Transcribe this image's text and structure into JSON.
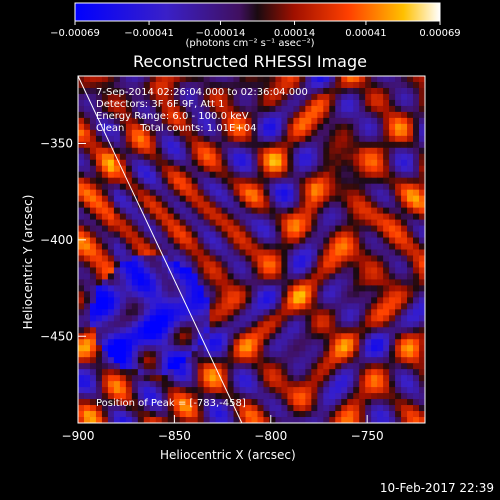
{
  "app": {
    "title": "Reconstructed RHESSI Image",
    "footer_timestamp": "10-Feb-2017 22:39",
    "colorbar_units": "(photons cm⁻² s⁻¹ asec⁻²)"
  },
  "info": {
    "time_range": "7-Sep-2014 02:26:04.000 to 02:36:04.000",
    "detectors": "Detectors: 3F 6F 9F, Att 1",
    "energy_range": "Energy Range: 6.0 - 100.0 keV",
    "clean": "Clean     Total counts: 1.01E+04",
    "peak": "Position of Peak = [-783,-458]"
  },
  "chart_data": {
    "type": "heatmap",
    "title": "Reconstructed RHESSI Image",
    "xlabel": "Heliocentric X (arcsec)",
    "ylabel": "Heliocentric Y (arcsec)",
    "xlim": [
      -900,
      -720
    ],
    "ylim": [
      -495,
      -315
    ],
    "x_ticks": [
      -900,
      -850,
      -800,
      -750
    ],
    "y_ticks": [
      -350,
      -400,
      -450
    ],
    "x_tick_labels": [
      "−900",
      "−850",
      "−800",
      "−750"
    ],
    "y_tick_labels": [
      "−350",
      "−400",
      "−450"
    ],
    "colorbar": {
      "min": -0.00069,
      "max": 0.00069,
      "ticks": [
        -0.00069,
        -0.00041,
        -0.00014,
        0.00014,
        0.00041,
        0.00069
      ],
      "tick_labels": [
        "−0.00069",
        "−0.00041",
        "−0.00014",
        "0.00014",
        "0.00041",
        "0.00069"
      ]
    },
    "peak_position": [
      -783,
      -458
    ],
    "limb_line": {
      "x": [
        -900,
        -815
      ],
      "y": [
        -315,
        -495
      ]
    }
  }
}
